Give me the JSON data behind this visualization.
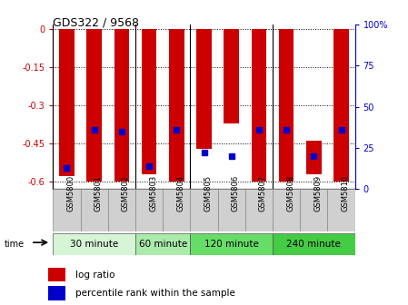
{
  "title": "GDS322 / 9568",
  "samples": [
    "GSM5800",
    "GSM5801",
    "GSM5802",
    "GSM5803",
    "GSM5804",
    "GSM5805",
    "GSM5806",
    "GSM5807",
    "GSM5808",
    "GSM5809",
    "GSM5810"
  ],
  "bar_top": [
    0.0,
    0.0,
    0.0,
    0.0,
    0.0,
    0.0,
    0.0,
    0.0,
    0.0,
    -0.44,
    0.0
  ],
  "bar_bottom": [
    -0.58,
    -0.6,
    -0.6,
    -0.57,
    -0.6,
    -0.47,
    -0.37,
    -0.6,
    -0.6,
    -0.57,
    -0.6
  ],
  "percentile_rank": [
    13,
    36,
    35,
    14,
    36,
    22,
    20,
    36,
    36,
    20,
    36
  ],
  "time_groups": [
    {
      "label": "30 minute",
      "start": 0,
      "end": 3,
      "color": "#d6f5d6"
    },
    {
      "label": "60 minute",
      "start": 3,
      "end": 5,
      "color": "#aaeaaa"
    },
    {
      "label": "120 minute",
      "start": 5,
      "end": 8,
      "color": "#66dd66"
    },
    {
      "label": "240 minute",
      "start": 8,
      "end": 11,
      "color": "#44cc44"
    }
  ],
  "ylim": [
    -0.63,
    0.02
  ],
  "yticks": [
    0,
    -0.15,
    -0.3,
    -0.45,
    -0.6
  ],
  "ytick_labels": [
    "0",
    "-0.15",
    "-0.3",
    "-0.45",
    "-0.6"
  ],
  "right_yticks": [
    0,
    25,
    50,
    75,
    100
  ],
  "right_ytick_labels": [
    "0",
    "25",
    "50",
    "75",
    "100%"
  ],
  "bar_color": "#cc0000",
  "percentile_color": "#0000cc",
  "bar_width": 0.55,
  "background_color": "#ffffff",
  "legend_log_ratio": "log ratio",
  "legend_percentile": "percentile rank within the sample"
}
